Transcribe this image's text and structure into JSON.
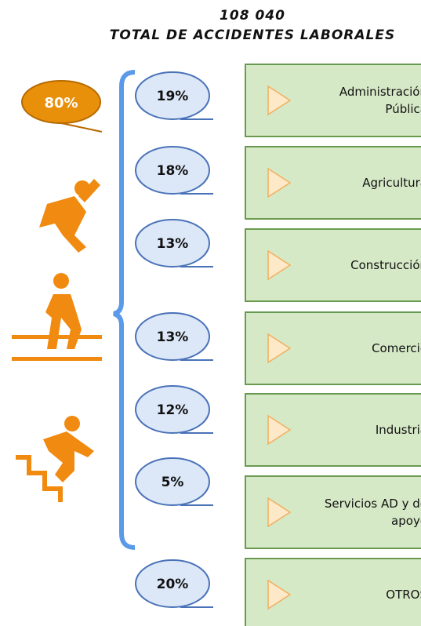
{
  "header": {
    "total": "108 040",
    "title": "TOTAL DE ACCIDENTES LABORALES"
  },
  "badge": "80%",
  "rows": [
    {
      "percent": "19%",
      "label_lines": [
        "Administración",
        "Pública"
      ]
    },
    {
      "percent": "18%",
      "label_lines": [
        "Agricultura"
      ]
    },
    {
      "percent": "13%",
      "label_lines": [
        "Construcción"
      ]
    },
    {
      "percent": "13%",
      "label_lines": [
        "Comercio"
      ]
    },
    {
      "percent": "12%",
      "label_lines": [
        "Industria"
      ]
    },
    {
      "percent": "5%",
      "label_lines": [
        "Servicios AD y de",
        "apoyo"
      ]
    },
    {
      "percent": "20%",
      "label_lines": [
        "OTROS"
      ]
    }
  ]
}
